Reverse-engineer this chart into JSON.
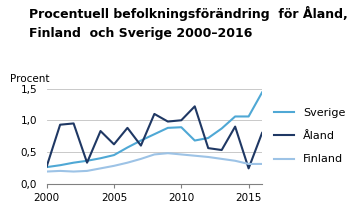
{
  "title_line1": "Procentuell befolkningsförändring  för Åland,",
  "title_line2": "Finland  och Sverige 2000–2016",
  "ylabel": "Procent",
  "years": [
    2000,
    2001,
    2002,
    2003,
    2004,
    2005,
    2006,
    2007,
    2008,
    2009,
    2010,
    2011,
    2012,
    2013,
    2014,
    2015,
    2016
  ],
  "sverige": [
    0.26,
    0.29,
    0.33,
    0.36,
    0.4,
    0.45,
    0.57,
    0.68,
    0.78,
    0.88,
    0.89,
    0.68,
    0.72,
    0.87,
    1.06,
    1.06,
    1.44
  ],
  "aland": [
    0.27,
    0.93,
    0.95,
    0.33,
    0.83,
    0.62,
    0.88,
    0.6,
    1.1,
    0.98,
    1.0,
    1.22,
    0.56,
    0.53,
    0.9,
    0.24,
    0.8
  ],
  "finland": [
    0.19,
    0.2,
    0.19,
    0.2,
    0.24,
    0.28,
    0.33,
    0.39,
    0.46,
    0.48,
    0.46,
    0.44,
    0.42,
    0.39,
    0.36,
    0.31,
    0.31
  ],
  "color_sverige": "#4fa8d5",
  "color_aland": "#1f3864",
  "color_finland": "#9dc3e6",
  "xlim": [
    2000,
    2016
  ],
  "ylim": [
    0.0,
    1.5
  ],
  "yticks": [
    0.0,
    0.5,
    1.0,
    1.5
  ],
  "ytick_labels": [
    "0,0",
    "0,5",
    "1,0",
    "1,5"
  ],
  "xticks": [
    2000,
    2005,
    2010,
    2015
  ],
  "legend_labels": [
    "Sverige",
    "Åland",
    "Finland"
  ],
  "title_fontsize": 9,
  "label_fontsize": 7.5,
  "tick_fontsize": 7.5,
  "legend_fontsize": 8
}
